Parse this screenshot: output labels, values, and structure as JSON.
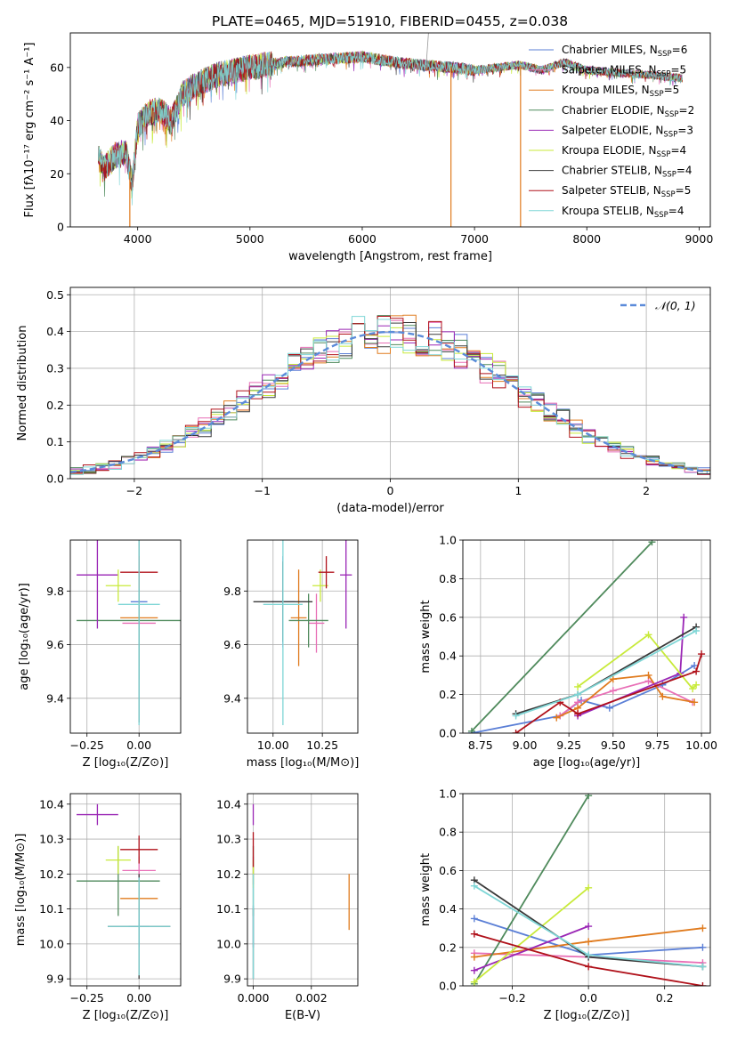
{
  "colors": {
    "Chabrier MILES": "#5b7fd6",
    "Salpeter MILES": "#e86fb6",
    "Kroupa MILES": "#e07b1e",
    "Chabrier ELODIE": "#4f8a5c",
    "Salpeter ELODIE": "#9a26b5",
    "Kroupa ELODIE": "#c8ea3a",
    "Chabrier STELIB": "#3a3a3a",
    "Salpeter STELIB": "#b0111a",
    "Kroupa STELIB": "#7fd6d6"
  },
  "chart_data": [
    {
      "id": "spectrum",
      "type": "line",
      "title": "PLATE=0465, MJD=51910, FIBERID=0455, z=0.038",
      "xlabel": "wavelength [Angstrom, rest frame]",
      "ylabel": "Flux [fλ10⁻¹⁷ erg cm⁻² s⁻¹ A⁻¹]",
      "xlim": [
        3400,
        9100
      ],
      "ylim": [
        0,
        73
      ],
      "xticks": [
        4000,
        5000,
        6000,
        7000,
        8000,
        9000
      ],
      "yticks": [
        0,
        20,
        40,
        60
      ],
      "legend_position": "top-right",
      "legend": [
        "Chabrier MILES, N_SSP=6",
        "Salpeter MILES, N_SSP=5",
        "Kroupa MILES, N_SSP=5",
        "Chabrier ELODIE, N_SSP=2",
        "Salpeter ELODIE, N_SSP=3",
        "Kroupa ELODIE, N_SSP=4",
        "Chabrier STELIB, N_SSP=4",
        "Salpeter STELIB, N_SSP=5",
        "Kroupa STELIB, N_SSP=4"
      ],
      "envelope": {
        "wavelength": [
          3650,
          3700,
          3800,
          3900,
          3950,
          4000,
          4100,
          4200,
          4300,
          4400,
          4500,
          4700,
          5000,
          5300,
          5600,
          6000,
          6300,
          6500,
          6800,
          7000,
          7200,
          7400,
          7600,
          7800,
          8000,
          8300,
          8600,
          8850
        ],
        "flux": [
          26,
          22,
          27,
          28,
          16,
          38,
          43,
          44,
          40,
          50,
          53,
          57,
          60,
          62,
          63,
          64,
          62,
          61,
          60,
          59,
          60,
          61,
          59,
          62,
          59,
          58,
          57,
          56
        ]
      },
      "drops": [
        {
          "wavelength": 3930,
          "label": "Kroupa MILES"
        },
        {
          "wavelength": 6790,
          "label": "Kroupa MILES"
        },
        {
          "wavelength": 7410,
          "label": "Kroupa MILES"
        }
      ]
    },
    {
      "id": "residuals",
      "type": "line",
      "xlabel": "(data-model)/error",
      "ylabel": "Normed distribution",
      "xlim": [
        -2.5,
        2.5
      ],
      "ylim": [
        0,
        0.52
      ],
      "xticks": [
        -2,
        -1,
        0,
        1,
        2
      ],
      "yticks": [
        0.0,
        0.1,
        0.2,
        0.3,
        0.4,
        0.5
      ],
      "grid": true,
      "legend": "𝒩(0, 1)",
      "legend_position": "top-right",
      "bin_width": 0.1
    },
    {
      "id": "age-vs-Z",
      "type": "scatter",
      "xlabel": "Z [log₁₀(Z/Z⊙)]",
      "ylabel": "age  [log₁₀(age/yr)]",
      "xlim": [
        -0.33,
        0.2
      ],
      "ylim": [
        9.27,
        9.99
      ],
      "xticks": [
        -0.25,
        0.0
      ],
      "yticks": [
        9.4,
        9.6,
        9.8
      ],
      "grid": true,
      "points": [
        {
          "label": "Chabrier MILES",
          "x": 0.0,
          "xerr": 0.04,
          "y": 9.76,
          "yerr": 0.17
        },
        {
          "label": "Salpeter MILES",
          "x": 0.0,
          "xerr": 0.08,
          "y": 9.68,
          "yerr": 0.0
        },
        {
          "label": "Kroupa MILES",
          "x": 0.0,
          "xerr": 0.09,
          "y": 9.7,
          "yerr": 0.18
        },
        {
          "label": "Chabrier ELODIE",
          "x": 0.0,
          "xerr": 0.3,
          "y": 9.69,
          "yerr": 0.22
        },
        {
          "label": "Salpeter ELODIE",
          "x": -0.2,
          "xerr": 0.1,
          "y": 9.86,
          "yerr": 0.2
        },
        {
          "label": "Kroupa ELODIE",
          "x": -0.1,
          "xerr": 0.06,
          "y": 9.82,
          "yerr": 0.06
        },
        {
          "label": "Chabrier STELIB",
          "x": 0.0,
          "xerr": 0.0,
          "y": 9.76,
          "yerr": 0.45
        },
        {
          "label": "Salpeter STELIB",
          "x": 0.0,
          "xerr": 0.09,
          "y": 9.87,
          "yerr": 0.06
        },
        {
          "label": "Kroupa STELIB",
          "x": 0.0,
          "xerr": 0.1,
          "y": 9.75,
          "yerr": 0.45
        }
      ]
    },
    {
      "id": "age-vs-mass",
      "type": "scatter",
      "xlabel": "mass [log₁₀(M/M⊙)]",
      "ylabel": "",
      "xlim": [
        9.87,
        10.43
      ],
      "ylim": [
        9.27,
        9.99
      ],
      "xticks": [
        10.0,
        10.25
      ],
      "yticks": [
        9.4,
        9.6,
        9.8
      ],
      "grid": true,
      "points": [
        {
          "label": "Chabrier MILES",
          "x": 10.05,
          "xerr": 0.06,
          "y": 9.76,
          "yerr": 0.17
        },
        {
          "label": "Salpeter MILES",
          "x": 10.22,
          "xerr": 0.04,
          "y": 9.68,
          "yerr": 0.11
        },
        {
          "label": "Kroupa MILES",
          "x": 10.13,
          "xerr": 0.04,
          "y": 9.7,
          "yerr": 0.18
        },
        {
          "label": "Chabrier ELODIE",
          "x": 10.18,
          "xerr": 0.1,
          "y": 9.69,
          "yerr": 0.1
        },
        {
          "label": "Salpeter ELODIE",
          "x": 10.37,
          "xerr": 0.03,
          "y": 9.86,
          "yerr": 0.2
        },
        {
          "label": "Kroupa ELODIE",
          "x": 10.24,
          "xerr": 0.04,
          "y": 9.82,
          "yerr": 0.06
        },
        {
          "label": "Chabrier STELIB",
          "x": 10.05,
          "xerr": 0.15,
          "y": 9.76,
          "yerr": 0.15
        },
        {
          "label": "Salpeter STELIB",
          "x": 10.27,
          "xerr": 0.04,
          "y": 9.87,
          "yerr": 0.06
        },
        {
          "label": "Kroupa STELIB",
          "x": 10.05,
          "xerr": 0.1,
          "y": 9.75,
          "yerr": 0.45
        }
      ]
    },
    {
      "id": "weight-vs-age",
      "type": "line",
      "xlabel": "age  [log₁₀(age/yr)]",
      "ylabel": "mass weight",
      "xlim": [
        8.65,
        10.05
      ],
      "ylim": [
        0,
        1
      ],
      "xticks": [
        8.75,
        9.0,
        9.25,
        9.5,
        9.75,
        10.0
      ],
      "yticks": [
        0.0,
        0.2,
        0.4,
        0.6,
        0.8,
        1.0
      ],
      "grid": true,
      "series": [
        {
          "label": "Chabrier MILES",
          "x": [
            8.7,
            9.2,
            9.32,
            9.48,
            9.78,
            9.96
          ],
          "y": [
            0.0,
            0.09,
            0.17,
            0.13,
            0.25,
            0.35
          ]
        },
        {
          "label": "Salpeter MILES",
          "x": [
            9.2,
            9.3,
            9.5,
            9.7,
            9.95
          ],
          "y": [
            0.09,
            0.16,
            0.22,
            0.27,
            0.16
          ]
        },
        {
          "label": "Kroupa MILES",
          "x": [
            9.18,
            9.3,
            9.5,
            9.7,
            9.78,
            9.96
          ],
          "y": [
            0.08,
            0.13,
            0.28,
            0.3,
            0.19,
            0.16
          ]
        },
        {
          "label": "Chabrier ELODIE",
          "x": [
            8.7,
            9.72
          ],
          "y": [
            0.01,
            0.99
          ]
        },
        {
          "label": "Salpeter ELODIE",
          "x": [
            9.3,
            9.88,
            9.9
          ],
          "y": [
            0.09,
            0.31,
            0.6
          ]
        },
        {
          "label": "Kroupa ELODIE",
          "x": [
            9.3,
            9.7,
            9.95,
            9.97
          ],
          "y": [
            0.24,
            0.51,
            0.23,
            0.25
          ]
        },
        {
          "label": "Chabrier STELIB",
          "x": [
            8.95,
            9.3,
            9.97
          ],
          "y": [
            0.1,
            0.2,
            0.55
          ]
        },
        {
          "label": "Salpeter STELIB",
          "x": [
            8.95,
            9.2,
            9.3,
            9.97,
            10.0
          ],
          "y": [
            0.0,
            0.16,
            0.1,
            0.32,
            0.41
          ]
        },
        {
          "label": "Kroupa STELIB",
          "x": [
            8.95,
            9.3,
            9.97
          ],
          "y": [
            0.09,
            0.2,
            0.53
          ]
        }
      ]
    },
    {
      "id": "mass-vs-Z",
      "type": "scatter",
      "xlabel": "Z [log₁₀(Z/Z⊙)]",
      "ylabel": "mass [log₁₀(M/M⊙)]",
      "xlim": [
        -0.33,
        0.2
      ],
      "ylim": [
        9.88,
        10.43
      ],
      "xticks": [
        -0.25,
        0.0
      ],
      "yticks": [
        9.9,
        10.0,
        10.1,
        10.2,
        10.3,
        10.4
      ],
      "grid": true,
      "points": [
        {
          "label": "Chabrier MILES",
          "x": 0.0,
          "xerr": 0.05,
          "y": 10.05,
          "yerr": 0.06
        },
        {
          "label": "Salpeter MILES",
          "x": 0.0,
          "xerr": 0.08,
          "y": 10.21,
          "yerr": 0.04
        },
        {
          "label": "Kroupa MILES",
          "x": 0.0,
          "xerr": 0.09,
          "y": 10.13,
          "yerr": 0.04
        },
        {
          "label": "Chabrier ELODIE",
          "x": -0.1,
          "xerr": 0.2,
          "y": 10.18,
          "yerr": 0.1
        },
        {
          "label": "Salpeter ELODIE",
          "x": -0.2,
          "xerr": 0.1,
          "y": 10.37,
          "yerr": 0.03
        },
        {
          "label": "Kroupa ELODIE",
          "x": -0.1,
          "xerr": 0.06,
          "y": 10.24,
          "yerr": 0.04
        },
        {
          "label": "Chabrier STELIB",
          "x": 0.0,
          "xerr": 0.15,
          "y": 10.05,
          "yerr": 0.15
        },
        {
          "label": "Salpeter STELIB",
          "x": 0.0,
          "xerr": 0.09,
          "y": 10.27,
          "yerr": 0.04
        },
        {
          "label": "Kroupa STELIB",
          "x": 0.0,
          "xerr": 0.15,
          "y": 10.05,
          "yerr": 0.14
        }
      ]
    },
    {
      "id": "mass-vs-ebv",
      "type": "scatter",
      "xlabel": "E(B-V)",
      "ylabel": "",
      "xlim": [
        -0.0002,
        0.0036
      ],
      "ylim": [
        9.88,
        10.43
      ],
      "xticks": [
        0.0,
        0.002
      ],
      "yticks": [
        9.9,
        10.0,
        10.1,
        10.2,
        10.3,
        10.4
      ],
      "grid": true,
      "points": [
        {
          "label": "Chabrier MILES",
          "x": 0.0,
          "y": 10.05,
          "yerr": 0.06
        },
        {
          "label": "Salpeter MILES",
          "x": 0.0,
          "y": 10.21,
          "yerr": 0.04
        },
        {
          "label": "Kroupa MILES",
          "x": 0.0033,
          "y": 10.12,
          "yerr": 0.08
        },
        {
          "label": "Chabrier ELODIE",
          "x": 0.0,
          "y": 10.18,
          "yerr": 0.1
        },
        {
          "label": "Salpeter ELODIE",
          "x": 0.0,
          "y": 10.37,
          "yerr": 0.03
        },
        {
          "label": "Kroupa ELODIE",
          "x": 0.0,
          "y": 10.2,
          "yerr": 0.04
        },
        {
          "label": "Chabrier STELIB",
          "x": 0.0,
          "y": 10.0,
          "yerr": 0.1
        },
        {
          "label": "Salpeter STELIB",
          "x": 0.0,
          "y": 10.27,
          "yerr": 0.05
        },
        {
          "label": "Kroupa STELIB",
          "x": 0.0,
          "y": 10.05,
          "yerr": 0.15
        }
      ]
    },
    {
      "id": "weight-vs-Z",
      "type": "line",
      "xlabel": "Z [log₁₀(Z/Z⊙)]",
      "ylabel": "mass weight",
      "xlim": [
        -0.33,
        0.32
      ],
      "ylim": [
        0,
        1
      ],
      "xticks": [
        -0.2,
        0.0,
        0.2
      ],
      "yticks": [
        0.0,
        0.2,
        0.4,
        0.6,
        0.8,
        1.0
      ],
      "grid": true,
      "series": [
        {
          "label": "Chabrier MILES",
          "x": [
            -0.3,
            0.0,
            0.3
          ],
          "y": [
            0.35,
            0.16,
            0.2
          ]
        },
        {
          "label": "Salpeter MILES",
          "x": [
            -0.3,
            0.0,
            0.3
          ],
          "y": [
            0.17,
            0.15,
            0.12
          ]
        },
        {
          "label": "Kroupa MILES",
          "x": [
            -0.3,
            0.0,
            0.3
          ],
          "y": [
            0.15,
            0.23,
            0.3
          ]
        },
        {
          "label": "Chabrier ELODIE",
          "x": [
            -0.3,
            0.0
          ],
          "y": [
            0.01,
            0.99
          ]
        },
        {
          "label": "Salpeter ELODIE",
          "x": [
            -0.3,
            0.0
          ],
          "y": [
            0.08,
            0.31
          ]
        },
        {
          "label": "Kroupa ELODIE",
          "x": [
            -0.3,
            0.0
          ],
          "y": [
            0.02,
            0.51
          ]
        },
        {
          "label": "Chabrier STELIB",
          "x": [
            -0.3,
            0.0,
            0.3
          ],
          "y": [
            0.55,
            0.15,
            0.1
          ]
        },
        {
          "label": "Salpeter STELIB",
          "x": [
            -0.3,
            0.0,
            0.3
          ],
          "y": [
            0.27,
            0.1,
            0.0
          ]
        },
        {
          "label": "Kroupa STELIB",
          "x": [
            -0.3,
            0.0,
            0.3
          ],
          "y": [
            0.52,
            0.16,
            0.1
          ]
        }
      ]
    }
  ]
}
